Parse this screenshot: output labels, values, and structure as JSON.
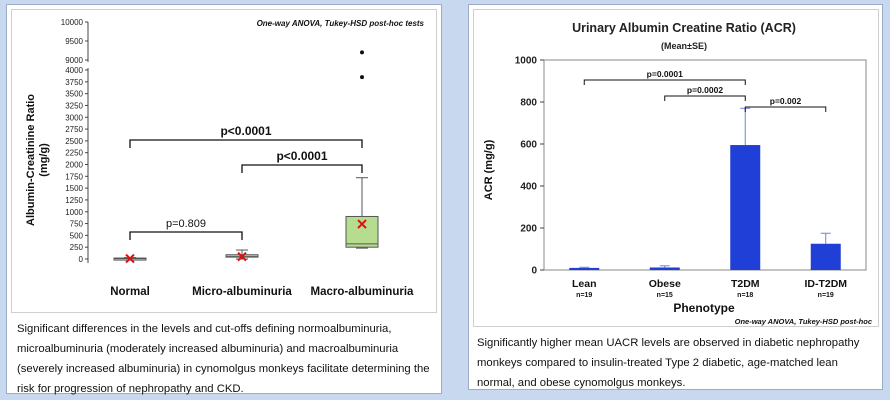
{
  "left_panel": {
    "caption": "Significant differences in the levels and cut-offs defining normoalbuminuria, microalbuminuria (moderately increased albuminuria) and macroalbuminuria (severely increased albuminuria) in cynomolgus monkeys facilitate determining the risk for progression of nephropathy and CKD."
  },
  "right_panel": {
    "caption": "Significantly higher mean UACR levels are observed in diabetic nephropathy monkeys compared to insulin-treated Type 2 diabetic, age-matched lean normal, and obese cynomolgus monkeys."
  },
  "chart_data": [
    {
      "type": "box",
      "title": "",
      "stats_note": "One-way ANOVA, Tukey-HSD post-hoc tests",
      "ylabel": "Albumin-Creatinine  Ratio",
      "ylabel_unit": "(mg/g)",
      "y_axis": "broken",
      "y_ticks_lower": [
        "0",
        "250",
        "500",
        "750",
        "1000",
        "1250",
        "1500",
        "1750",
        "2000",
        "2250",
        "2500",
        "2750",
        "3000",
        "3250",
        "3500",
        "3750",
        "4000"
      ],
      "y_ticks_upper": [
        "9000",
        "9500",
        "10000"
      ],
      "categories": [
        "Normal",
        "Micro-albuminuria",
        "Macro-albuminuria"
      ],
      "boxes": [
        {
          "category": "Normal",
          "min": 0,
          "q1": 5,
          "median": 10,
          "q3": 20,
          "max": 30,
          "mean": 10,
          "outliers": []
        },
        {
          "category": "Micro-albuminuria",
          "min": 0,
          "q1": 40,
          "median": 50,
          "q3": 90,
          "max": 190,
          "mean": 50,
          "outliers": []
        },
        {
          "category": "Macro-albuminuria",
          "min": 230,
          "q1": 250,
          "median": 320,
          "q3": 900,
          "max": 1720,
          "mean": 740,
          "outliers": [
            3850,
            9200
          ]
        }
      ],
      "comparisons": [
        {
          "from": "Normal",
          "to": "Micro-albuminuria",
          "label": "p=0.809"
        },
        {
          "from": "Normal",
          "to": "Macro-albuminuria",
          "label": "p<0.0001"
        },
        {
          "from": "Micro-albuminuria",
          "to": "Macro-albuminuria",
          "label": "p<0.0001"
        }
      ]
    },
    {
      "type": "bar",
      "title": "Urinary Albumin Creatine Ratio (ACR)",
      "subtitle": "(Mean±SE)",
      "stats_note": "One-way ANOVA,  Tukey-HSD post-hoc",
      "xlabel": "Phenotype",
      "ylabel": "ACR (mg/g)",
      "ylim": [
        0,
        1000
      ],
      "yticks": [
        0,
        200,
        400,
        600,
        800,
        1000
      ],
      "categories": [
        "Lean",
        "Obese",
        "T2DM",
        "ID-T2DM"
      ],
      "n_labels": [
        "n=19",
        "n=15",
        "n=18",
        "n=19"
      ],
      "values": [
        10,
        12,
        595,
        125
      ],
      "errors": [
        3,
        8,
        175,
        50
      ],
      "color": "#1f3fd6",
      "comparisons": [
        {
          "from": "Lean",
          "to": "T2DM",
          "label": "p=0.0001"
        },
        {
          "from": "Obese",
          "to": "T2DM",
          "label": "p=0.0002"
        },
        {
          "from": "T2DM",
          "to": "ID-T2DM",
          "label": "p=0.002"
        }
      ]
    }
  ]
}
